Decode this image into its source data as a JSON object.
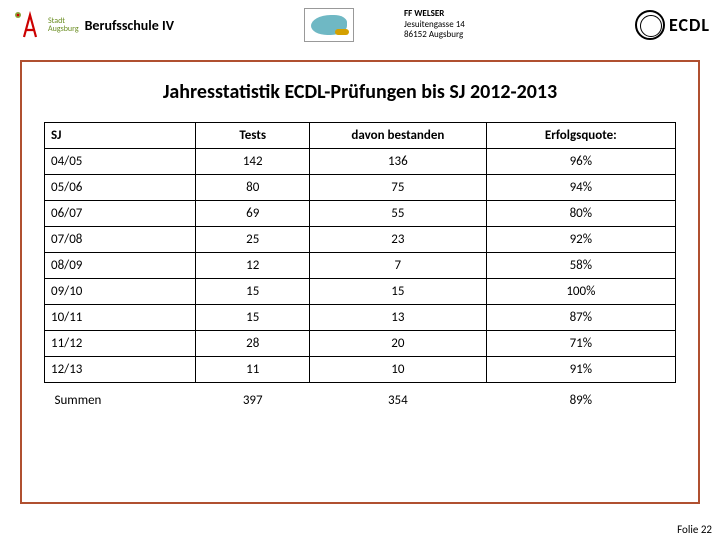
{
  "header": {
    "stadt_line1": "Stadt",
    "stadt_line2": "Augsburg",
    "school": "Berufsschule IV",
    "addr_line1": "FF WELSER",
    "addr_line2": "Jesuitengasse 14",
    "addr_line3": "86152 Augsburg",
    "ecdl_label": "ECDL"
  },
  "title": "Jahresstatistik  ECDL-Prüfungen bis SJ 2012-2013",
  "table": {
    "columns": [
      "SJ",
      "Tests",
      "davon bestanden",
      "Erfolgsquote:"
    ],
    "rows": [
      [
        "04/05",
        "142",
        "136",
        "96%"
      ],
      [
        "05/06",
        "80",
        "75",
        "94%"
      ],
      [
        "06/07",
        "69",
        "55",
        "80%"
      ],
      [
        "07/08",
        "25",
        "23",
        "92%"
      ],
      [
        "08/09",
        "12",
        "7",
        "58%"
      ],
      [
        "09/10",
        "15",
        "15",
        "100%"
      ],
      [
        "10/11",
        "15",
        "13",
        "87%"
      ],
      [
        "11/12",
        "28",
        "20",
        "71%"
      ],
      [
        "12/13",
        "11",
        "10",
        "91%"
      ]
    ],
    "sum_label": "Summen",
    "sum": [
      "397",
      "354",
      "89%"
    ]
  },
  "footer": "Folie 22",
  "colors": {
    "box_border": "#b05030",
    "table_border": "#000000",
    "background": "#ffffff"
  }
}
